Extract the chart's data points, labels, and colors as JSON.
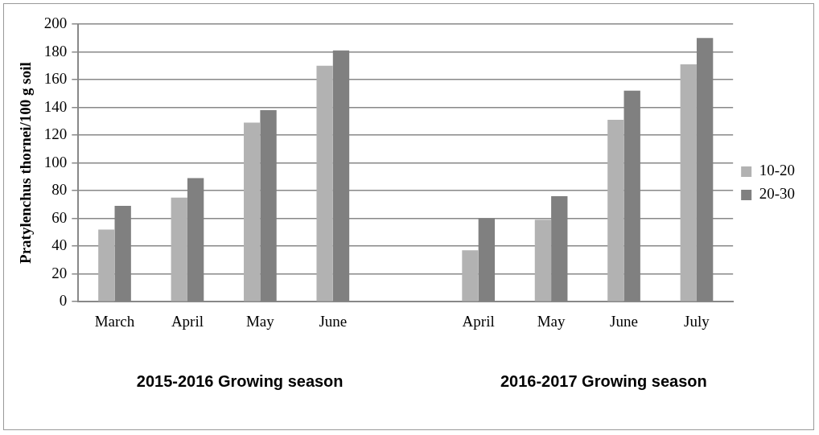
{
  "chart_data": {
    "type": "bar",
    "ylabel": "Pratylenchus thornei/100 g soil",
    "categories": [
      "March",
      "April",
      "May",
      "June",
      null,
      "April",
      "May",
      "June",
      "July"
    ],
    "series": [
      {
        "name": "10-20",
        "color": "#b2b2b2",
        "values": [
          52,
          75,
          129,
          170,
          null,
          37,
          59,
          131,
          171
        ]
      },
      {
        "name": "20-30",
        "color": "#808080",
        "values": [
          69,
          89,
          138,
          181,
          null,
          60,
          76,
          152,
          190
        ]
      }
    ],
    "ylim": [
      0,
      200
    ],
    "yticks": [
      0,
      20,
      40,
      60,
      80,
      100,
      120,
      140,
      160,
      180,
      200
    ],
    "grid": "y",
    "legend": "right",
    "annotations": [
      "2015-2016 Growing season",
      "2016-2017 Growing season"
    ]
  }
}
